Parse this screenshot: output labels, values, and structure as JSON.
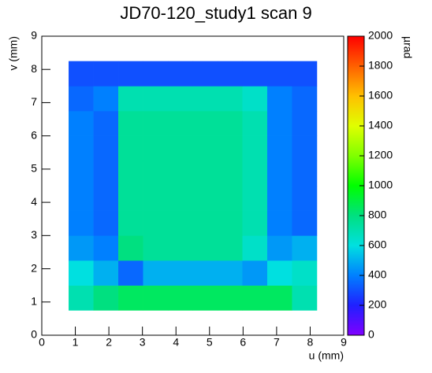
{
  "chart_data": {
    "type": "heatmap",
    "title": "JD70-120_study1 scan 9",
    "x_label": "u (mm)",
    "y_label": "v (mm)",
    "colorbar_label": "µrad",
    "xlim": [
      0,
      9
    ],
    "ylim": [
      0,
      9
    ],
    "xticks": [
      0,
      1,
      2,
      3,
      4,
      5,
      6,
      7,
      8,
      9
    ],
    "yticks": [
      0,
      1,
      2,
      3,
      4,
      5,
      6,
      7,
      8,
      9
    ],
    "zlim": [
      0,
      2000
    ],
    "zticks": [
      0,
      200,
      400,
      600,
      800,
      1000,
      1200,
      1400,
      1600,
      1800,
      2000
    ],
    "colormap": [
      "#8000ff",
      "#2020ff",
      "#0080ff",
      "#00e0e0",
      "#00e080",
      "#00ff00",
      "#80ff00",
      "#e0ff00",
      "#ffc000",
      "#ff6000",
      "#ff0000"
    ],
    "x_edges": [
      0.8,
      1.54,
      2.28,
      3.02,
      3.76,
      4.5,
      5.24,
      5.98,
      6.72,
      7.46,
      8.2
    ],
    "y_edges": [
      0.75,
      1.5,
      2.25,
      3.0,
      3.75,
      4.5,
      5.25,
      6.0,
      6.75,
      7.5,
      8.25
    ],
    "z": [
      [
        700,
        800,
        850,
        850,
        850,
        850,
        850,
        850,
        850,
        700
      ],
      [
        600,
        500,
        350,
        500,
        500,
        500,
        500,
        450,
        600,
        650
      ],
      [
        450,
        400,
        800,
        750,
        750,
        750,
        750,
        650,
        450,
        500
      ],
      [
        400,
        350,
        750,
        750,
        750,
        750,
        750,
        700,
        400,
        350
      ],
      [
        400,
        350,
        750,
        750,
        750,
        750,
        750,
        700,
        400,
        350
      ],
      [
        400,
        350,
        750,
        750,
        750,
        750,
        750,
        700,
        400,
        350
      ],
      [
        400,
        350,
        750,
        750,
        750,
        750,
        750,
        700,
        400,
        350
      ],
      [
        400,
        350,
        750,
        750,
        750,
        750,
        750,
        700,
        400,
        350
      ],
      [
        350,
        400,
        700,
        700,
        700,
        700,
        700,
        650,
        400,
        350
      ],
      [
        300,
        300,
        300,
        300,
        300,
        300,
        300,
        300,
        300,
        300
      ]
    ]
  }
}
